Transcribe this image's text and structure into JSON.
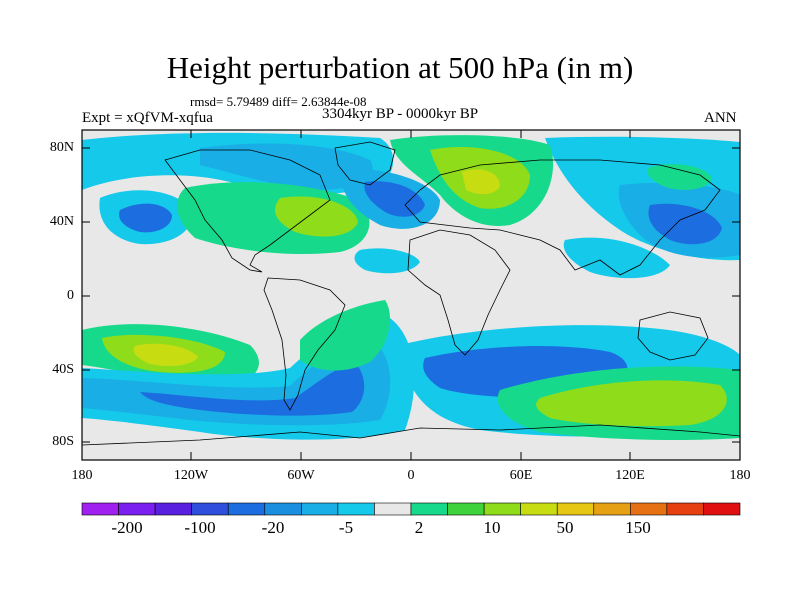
{
  "header": {
    "title": "Height perturbation at 500 hPa (in m)",
    "stats": "rmsd= 5.79489 diff= 2.63844e-08",
    "experiment": "Expt = xQfVM-xqfua",
    "period": "3304kyr BP - 0000kyr BP",
    "season": "ANN"
  },
  "axes": {
    "lat_labels": [
      "80N",
      "40N",
      "0",
      "40S",
      "80S"
    ],
    "lon_labels": [
      "180",
      "120W",
      "60W",
      "0",
      "60E",
      "120E",
      "180"
    ]
  },
  "colorbar": {
    "labels": [
      "-200",
      "-100",
      "-20",
      "-5",
      "2",
      "10",
      "50",
      "150"
    ],
    "colors": [
      "#a020f0",
      "#7b1ff0",
      "#5a20e0",
      "#2f4fdc",
      "#1c6ee0",
      "#1a8fe0",
      "#19aee5",
      "#15c9ea",
      "#e8e8e8",
      "#17d98b",
      "#3fd23a",
      "#8fdc1a",
      "#c8dc12",
      "#e6c814",
      "#e6a014",
      "#e67014",
      "#e64010",
      "#e01010"
    ]
  },
  "palette": {
    "background": "#e8e8e8",
    "cyan": "#15c9ea",
    "light_blue": "#19aee5",
    "blue": "#1c6ee0",
    "green": "#17d98b",
    "lime": "#8fdc1a",
    "yellow": "#c8dc12",
    "orange": "#e6a014"
  }
}
